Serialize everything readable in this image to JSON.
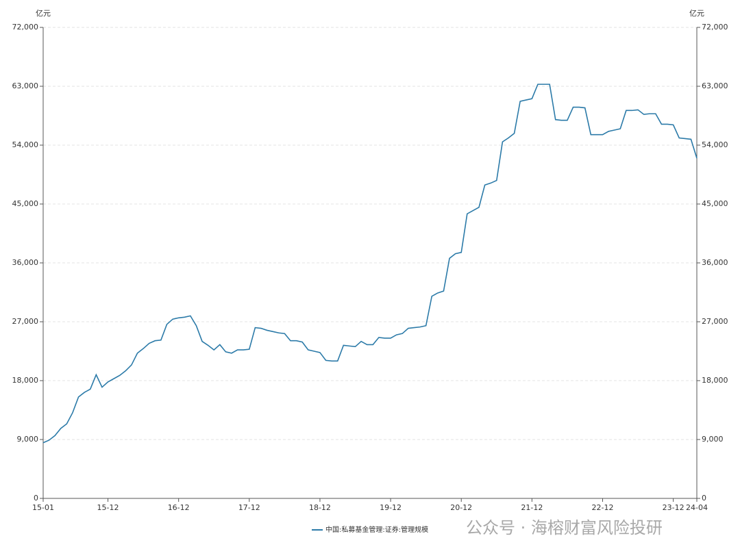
{
  "chart_data": {
    "type": "line",
    "unit_left": "亿元",
    "unit_right": "亿元",
    "categories": [
      "15-01",
      null,
      null,
      null,
      null,
      null,
      null,
      null,
      null,
      null,
      null,
      "15-12",
      null,
      null,
      null,
      null,
      null,
      null,
      null,
      null,
      null,
      null,
      null,
      "16-12",
      null,
      null,
      null,
      null,
      null,
      null,
      null,
      null,
      null,
      null,
      null,
      "17-12",
      null,
      null,
      null,
      null,
      null,
      null,
      null,
      null,
      null,
      null,
      null,
      "18-12",
      null,
      null,
      null,
      null,
      null,
      null,
      null,
      null,
      null,
      null,
      null,
      "19-12",
      null,
      null,
      null,
      null,
      null,
      null,
      null,
      null,
      null,
      null,
      null,
      "20-12",
      null,
      null,
      null,
      null,
      null,
      null,
      null,
      null,
      null,
      null,
      null,
      "21-12",
      null,
      null,
      null,
      null,
      null,
      null,
      null,
      null,
      null,
      null,
      null,
      "22-12",
      null,
      null,
      null,
      null,
      null,
      null,
      null,
      null,
      null,
      null,
      null,
      "23-12",
      null,
      null,
      null,
      "24-04"
    ],
    "series": [
      {
        "name": "中国:私募基金管理:证券:管理规模",
        "color": "#2b7aa8",
        "values": [
          8500,
          8900,
          9600,
          10700,
          11400,
          13100,
          15500,
          16200,
          16700,
          18900,
          17000,
          17800,
          18300,
          18800,
          19500,
          20400,
          22200,
          22900,
          23700,
          24100,
          24200,
          26600,
          27400,
          27600,
          27700,
          27900,
          26400,
          24000,
          23400,
          22700,
          23500,
          22400,
          22200,
          22700,
          22700,
          22800,
          26100,
          26000,
          25700,
          25500,
          25300,
          25200,
          24100,
          24100,
          23900,
          22700,
          22500,
          22300,
          21100,
          21000,
          21000,
          23400,
          23300,
          23200,
          24000,
          23500,
          23500,
          24600,
          24500,
          24500,
          25000,
          25200,
          26000,
          26100,
          26200,
          26400,
          30900,
          31400,
          31700,
          36700,
          37400,
          37600,
          43500,
          44000,
          44500,
          47900,
          48200,
          48600,
          54500,
          55100,
          55800,
          60700,
          60900,
          61100,
          63300,
          63300,
          63300,
          57900,
          57800,
          57800,
          59800,
          59800,
          59700,
          55600,
          55600,
          55600,
          56100,
          56300,
          56500,
          59300,
          59300,
          59400,
          58700,
          58800,
          58800,
          57200,
          57200,
          57100,
          55100,
          55000,
          54900,
          52000
        ]
      }
    ],
    "ylim": [
      0,
      72000
    ],
    "yticks": [
      0,
      {
        "value": 9000,
        "label": "9,000"
      },
      {
        "value": 18000,
        "label": "18,000"
      },
      {
        "value": 27000,
        "label": "27,000"
      },
      {
        "value": 36000,
        "label": "36,000"
      },
      {
        "value": 45000,
        "label": "45,000"
      },
      {
        "value": 54000,
        "label": "54,000"
      },
      {
        "value": 63000,
        "label": "63,000"
      },
      {
        "value": 72000,
        "label": "72,000"
      }
    ],
    "grid": true,
    "legend": "bottom"
  },
  "watermark": "公众号 · 海榕财富风险投研"
}
